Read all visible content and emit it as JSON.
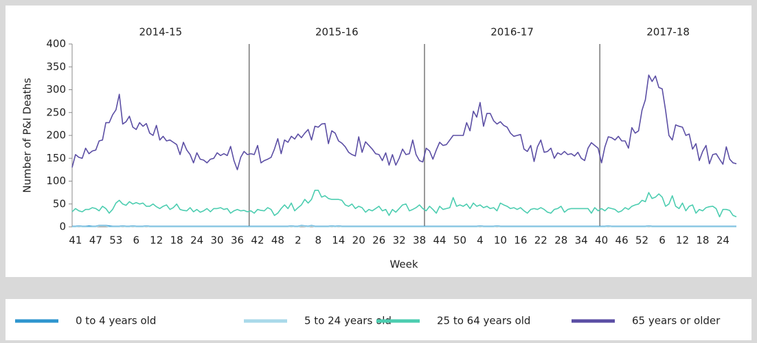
{
  "chart_data": {
    "type": "line",
    "seasons": [
      {
        "label": "2014-15",
        "weeks": 53
      },
      {
        "label": "2015-16",
        "weeks": 52
      },
      {
        "label": "2016-17",
        "weeks": 52
      },
      {
        "label": "2017-18",
        "weeks": 41
      }
    ],
    "x_label": "Week",
    "y_label": "Number of P&I Deaths",
    "ylim": [
      0,
      400
    ],
    "yticks": [
      0,
      50,
      100,
      150,
      200,
      250,
      300,
      350,
      400
    ],
    "legend": "bottom",
    "categories": [
      null,
      "41",
      null,
      null,
      null,
      null,
      null,
      "47",
      null,
      null,
      null,
      null,
      null,
      "53",
      null,
      null,
      null,
      null,
      null,
      "6",
      null,
      null,
      null,
      null,
      null,
      "12",
      null,
      null,
      null,
      null,
      null,
      "18",
      null,
      null,
      null,
      null,
      null,
      "24",
      null,
      null,
      null,
      null,
      null,
      "30",
      null,
      null,
      null,
      null,
      null,
      "36",
      null,
      null,
      null,
      null,
      null,
      "42",
      null,
      null,
      null,
      null,
      null,
      "48",
      null,
      null,
      null,
      null,
      null,
      "2",
      null,
      null,
      null,
      null,
      null,
      "8",
      null,
      null,
      null,
      null,
      null,
      "14",
      null,
      null,
      null,
      null,
      null,
      "20",
      null,
      null,
      null,
      null,
      null,
      "26",
      null,
      null,
      null,
      null,
      null,
      "32",
      null,
      null,
      null,
      null,
      null,
      "38",
      null,
      null,
      null,
      null,
      null,
      "44",
      null,
      null,
      null,
      null,
      null,
      "50",
      null,
      null,
      null,
      null,
      null,
      "4",
      null,
      null,
      null,
      null,
      null,
      "10",
      null,
      null,
      null,
      null,
      null,
      "16",
      null,
      null,
      null,
      null,
      null,
      "22",
      null,
      null,
      null,
      null,
      null,
      "28",
      null,
      null,
      null,
      null,
      null,
      "34",
      null,
      null,
      null,
      null,
      null,
      "40",
      null,
      null,
      null,
      null,
      null,
      "46",
      null,
      null,
      null,
      null,
      null,
      "52",
      null,
      null,
      null,
      null,
      null,
      "6",
      null,
      null,
      null,
      null,
      null,
      "12",
      null,
      null,
      null,
      null,
      null,
      "18",
      null,
      null,
      null,
      null,
      null,
      "24",
      null,
      null,
      null,
      null
    ],
    "series": [
      {
        "name": "0 to 4 years old",
        "color": "#2e96cf",
        "values": [
          1,
          1,
          2,
          1,
          1,
          2,
          1,
          1,
          3,
          3,
          3,
          2,
          1,
          1,
          1,
          2,
          1,
          1,
          2,
          1,
          1,
          1,
          2,
          1,
          1,
          1,
          1,
          1,
          1,
          1,
          1,
          1,
          1,
          1,
          1,
          1,
          1,
          1,
          1,
          1,
          1,
          1,
          1,
          1,
          1,
          1,
          1,
          1,
          1,
          1,
          1,
          1,
          1,
          1,
          1,
          1,
          1,
          1,
          1,
          1,
          1,
          1,
          1,
          1,
          1,
          2,
          1,
          1,
          3,
          2,
          1,
          3,
          1,
          1,
          1,
          1,
          1,
          2,
          1,
          2,
          1,
          1,
          1,
          1,
          1,
          1,
          1,
          1,
          1,
          1,
          1,
          1,
          1,
          1,
          1,
          1,
          1,
          1,
          1,
          1,
          1,
          1,
          1,
          1,
          1,
          1,
          1,
          1,
          1,
          1,
          1,
          1,
          1,
          1,
          1,
          1,
          1,
          1,
          1,
          1,
          1,
          2,
          1,
          1,
          1,
          1,
          2,
          1,
          1,
          1,
          1,
          1,
          1,
          1,
          1,
          1,
          1,
          1,
          1,
          1,
          1,
          1,
          1,
          1,
          1,
          1,
          1,
          1,
          1,
          1,
          1,
          1,
          1,
          1,
          1,
          1,
          1,
          1,
          1,
          2,
          1,
          1,
          1,
          1,
          1,
          1,
          1,
          1,
          1,
          1,
          1,
          2,
          1,
          1,
          1,
          1,
          1,
          1,
          1,
          1,
          1,
          1,
          1,
          1,
          1,
          1,
          1,
          1,
          1,
          1,
          1,
          1,
          1,
          1,
          1,
          1,
          1,
          1
        ]
      },
      {
        "name": "5 to 24 years old",
        "color": "#a9d9ea",
        "values": [
          0,
          0,
          1,
          0,
          0,
          0,
          0,
          0,
          2,
          2,
          2,
          0,
          0,
          0,
          0,
          1,
          0,
          0,
          1,
          0,
          0,
          0,
          1,
          0,
          0,
          0,
          0,
          0,
          0,
          0,
          0,
          0,
          0,
          0,
          0,
          0,
          0,
          0,
          0,
          0,
          0,
          0,
          0,
          0,
          0,
          0,
          0,
          0,
          0,
          0,
          0,
          0,
          0,
          0,
          0,
          0,
          0,
          0,
          0,
          0,
          0,
          0,
          0,
          0,
          0,
          1,
          0,
          0,
          2,
          1,
          0,
          2,
          0,
          0,
          0,
          0,
          0,
          1,
          0,
          1,
          0,
          0,
          0,
          0,
          0,
          0,
          0,
          0,
          0,
          0,
          0,
          0,
          0,
          0,
          0,
          0,
          0,
          0,
          0,
          0,
          0,
          0,
          0,
          0,
          0,
          0,
          0,
          0,
          0,
          0,
          0,
          0,
          0,
          0,
          0,
          0,
          0,
          0,
          0,
          0,
          0,
          1,
          0,
          0,
          0,
          0,
          1,
          0,
          0,
          0,
          0,
          0,
          0,
          0,
          0,
          0,
          0,
          0,
          0,
          0,
          0,
          0,
          0,
          0,
          0,
          0,
          0,
          0,
          0,
          0,
          0,
          0,
          0,
          0,
          0,
          0,
          0,
          0,
          0,
          1,
          0,
          0,
          0,
          0,
          0,
          0,
          0,
          0,
          0,
          0,
          0,
          1,
          0,
          0,
          0,
          0,
          0,
          0,
          0,
          0,
          0,
          0,
          0,
          0,
          0,
          0,
          0,
          0,
          0,
          0,
          0,
          0,
          0,
          0,
          0,
          0,
          0,
          0
        ]
      },
      {
        "name": "25 to 64 years old",
        "color": "#4ccdb0",
        "values": [
          33,
          40,
          35,
          33,
          38,
          38,
          42,
          40,
          35,
          45,
          40,
          30,
          38,
          52,
          58,
          50,
          47,
          55,
          50,
          53,
          50,
          52,
          45,
          45,
          50,
          44,
          40,
          45,
          48,
          38,
          42,
          50,
          38,
          36,
          35,
          42,
          33,
          38,
          32,
          35,
          40,
          33,
          40,
          40,
          42,
          38,
          40,
          30,
          35,
          38,
          35,
          36,
          33,
          35,
          30,
          38,
          36,
          35,
          42,
          38,
          25,
          30,
          40,
          48,
          40,
          52,
          35,
          42,
          48,
          60,
          52,
          60,
          80,
          80,
          65,
          68,
          62,
          60,
          60,
          60,
          58,
          48,
          45,
          50,
          40,
          45,
          42,
          32,
          38,
          35,
          40,
          45,
          35,
          38,
          25,
          38,
          32,
          40,
          48,
          50,
          35,
          38,
          42,
          48,
          40,
          35,
          45,
          38,
          30,
          45,
          38,
          40,
          42,
          64,
          45,
          48,
          45,
          50,
          40,
          52,
          45,
          48,
          42,
          45,
          40,
          42,
          35,
          52,
          48,
          45,
          40,
          42,
          38,
          42,
          35,
          30,
          38,
          40,
          38,
          42,
          38,
          32,
          30,
          38,
          40,
          45,
          32,
          38,
          40,
          40,
          40,
          40,
          40,
          40,
          30,
          42,
          35,
          40,
          35,
          42,
          40,
          38,
          32,
          35,
          42,
          38,
          45,
          48,
          50,
          58,
          55,
          75,
          62,
          65,
          72,
          65,
          45,
          50,
          68,
          45,
          40,
          52,
          35,
          45,
          48,
          30,
          38,
          35,
          42,
          44,
          45,
          40,
          22,
          38,
          38,
          36,
          25,
          22
        ]
      },
      {
        "name": "65 years or older",
        "color": "#5b4ea4",
        "values": [
          130,
          158,
          152,
          150,
          172,
          160,
          166,
          168,
          188,
          190,
          228,
          228,
          245,
          256,
          290,
          225,
          230,
          242,
          218,
          213,
          228,
          220,
          226,
          205,
          200,
          222,
          190,
          198,
          188,
          190,
          185,
          180,
          158,
          185,
          168,
          158,
          140,
          162,
          148,
          146,
          140,
          148,
          150,
          162,
          156,
          160,
          156,
          176,
          145,
          125,
          152,
          165,
          158,
          160,
          158,
          178,
          140,
          145,
          148,
          152,
          170,
          193,
          160,
          190,
          185,
          198,
          192,
          203,
          195,
          205,
          213,
          190,
          220,
          218,
          225,
          226,
          182,
          210,
          205,
          188,
          183,
          175,
          163,
          158,
          155,
          197,
          163,
          186,
          178,
          170,
          160,
          158,
          145,
          162,
          135,
          158,
          135,
          150,
          170,
          158,
          160,
          190,
          158,
          145,
          142,
          172,
          166,
          148,
          168,
          185,
          178,
          180,
          190,
          200,
          200,
          200,
          200,
          228,
          210,
          253,
          240,
          272,
          220,
          248,
          248,
          232,
          225,
          230,
          222,
          218,
          205,
          198,
          200,
          202,
          170,
          165,
          178,
          143,
          175,
          190,
          163,
          165,
          172,
          150,
          162,
          158,
          165,
          158,
          160,
          155,
          163,
          150,
          145,
          172,
          184,
          178,
          172,
          140,
          175,
          197,
          195,
          190,
          198,
          188,
          188,
          172,
          217,
          205,
          210,
          255,
          278,
          332,
          318,
          330,
          305,
          302,
          255,
          200,
          190,
          223,
          220,
          218,
          200,
          203,
          170,
          182,
          145,
          165,
          178,
          138,
          158,
          160,
          148,
          137,
          175,
          148,
          140,
          138
        ]
      }
    ]
  }
}
